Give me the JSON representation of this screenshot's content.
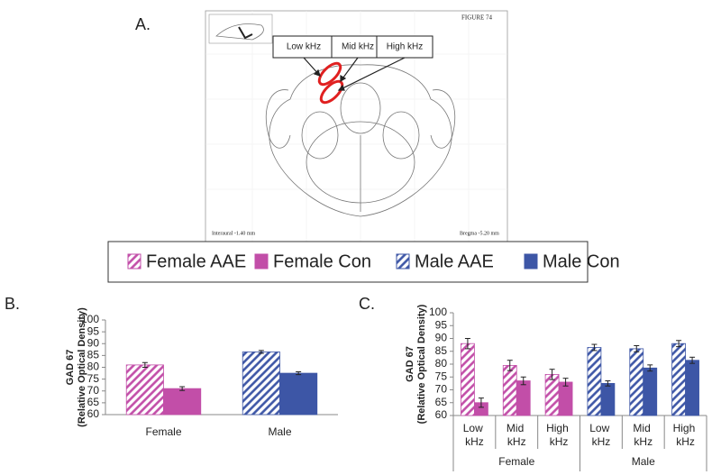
{
  "panels": [
    "A.",
    "B.",
    "C."
  ],
  "atlas": {
    "figure": "FIGURE 74",
    "interaural": "Interaural -1.40 mm",
    "bregma": "Bregma -5.20 mm",
    "callouts": [
      "Low kHz",
      "Mid kHz",
      "High kHz"
    ]
  },
  "chart_data": [
    {
      "type": "bar",
      "ylabel": [
        "GAD 67",
        "(Relative Optical Density)"
      ],
      "categories": [
        "Female",
        "Male"
      ],
      "ylim": [
        60,
        100
      ],
      "yticks": [
        60,
        65,
        70,
        75,
        80,
        85,
        90,
        95,
        100
      ],
      "series": [
        {
          "name": "Female AAE",
          "color": "#c24ea8",
          "pattern": "hatch",
          "values": [
            81,
            null
          ],
          "errors": [
            1,
            null
          ]
        },
        {
          "name": "Female Con",
          "color": "#c24ea8",
          "pattern": "solid",
          "values": [
            71,
            null
          ],
          "errors": [
            0.8,
            null
          ]
        },
        {
          "name": "Male AAE",
          "color": "#3d56a6",
          "pattern": "hatch",
          "values": [
            null,
            86.5
          ],
          "errors": [
            null,
            0.6
          ]
        },
        {
          "name": "Male Con",
          "color": "#3d56a6",
          "pattern": "solid",
          "values": [
            null,
            77.5
          ],
          "errors": [
            null,
            0.6
          ]
        }
      ]
    },
    {
      "type": "bar",
      "ylabel": [
        "GAD 67",
        "(Relative Optical Density)"
      ],
      "categories": [
        "Low kHz",
        "Mid kHz",
        "High kHz",
        "Low kHz",
        "Mid kHz",
        "High kHz"
      ],
      "groups": [
        "Female",
        "Male"
      ],
      "ylim": [
        60,
        100
      ],
      "yticks": [
        60,
        65,
        70,
        75,
        80,
        85,
        90,
        95,
        100
      ],
      "series": [
        {
          "color": "#c24ea8",
          "pattern": "hatch",
          "values": [
            88,
            79.5,
            76,
            null,
            null,
            null
          ],
          "errors": [
            2,
            2,
            2,
            null,
            null,
            null
          ]
        },
        {
          "color": "#c24ea8",
          "pattern": "solid",
          "values": [
            65,
            73.5,
            73,
            null,
            null,
            null
          ],
          "errors": [
            1.8,
            1.5,
            1.5,
            null,
            null,
            null
          ]
        },
        {
          "color": "#3d56a6",
          "pattern": "hatch",
          "values": [
            null,
            null,
            null,
            86.5,
            86,
            88
          ],
          "errors": [
            null,
            null,
            null,
            1.2,
            1.2,
            1.2
          ]
        },
        {
          "color": "#3d56a6",
          "pattern": "solid",
          "values": [
            null,
            null,
            null,
            72.5,
            78.5,
            81.5
          ],
          "errors": [
            null,
            null,
            null,
            1,
            1.2,
            1.2
          ]
        }
      ]
    }
  ]
}
